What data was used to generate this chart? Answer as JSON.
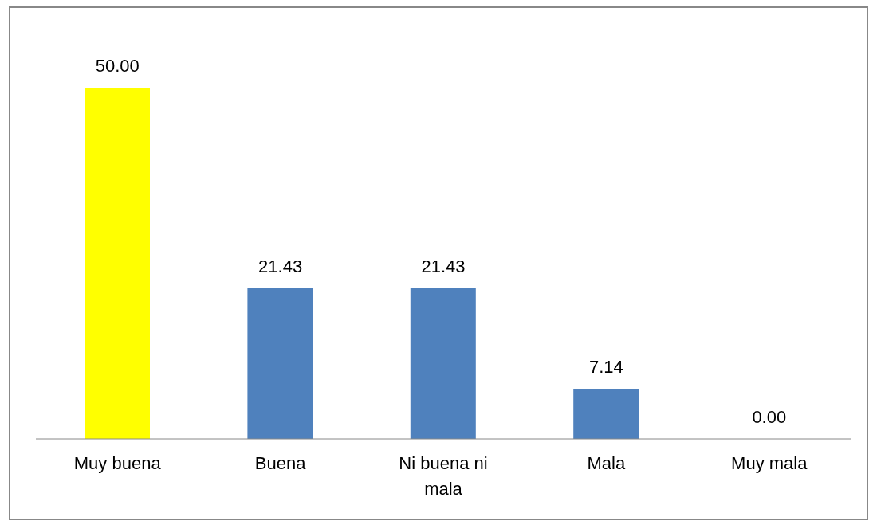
{
  "chart_data": {
    "type": "bar",
    "categories": [
      "Muy buena",
      "Buena",
      "Ni buena ni mala",
      "Mala",
      "Muy mala"
    ],
    "values": [
      50,
      21.43,
      21.43,
      7.14,
      0
    ],
    "colors": [
      "#ffff00",
      "#4f81bd",
      "#4f81bd",
      "#4f81bd",
      "#4f81bd"
    ],
    "value_labels": [
      "50.00",
      "21.43",
      "21.43",
      "7.14",
      "0.00"
    ],
    "grid": false,
    "legend": false
  }
}
